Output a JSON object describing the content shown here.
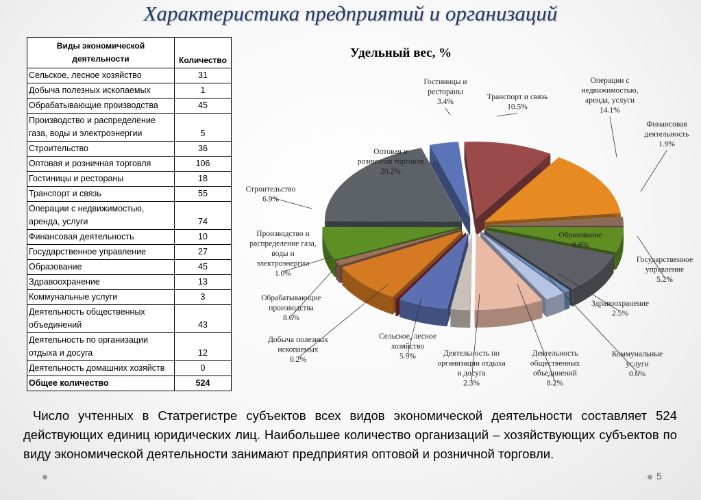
{
  "slide": {
    "title": "Характеристика предприятий и организаций",
    "page_number": "5",
    "footer_text": "Число учтенных в Статрегистре субъектов всех видов экономической деятельности составляет 524 действующих единиц юридических лиц. Наибольшее количество  организаций – хозяйствующих субъектов по виду экономической деятельности занимают предприятия оптовой и розничной торговли."
  },
  "table": {
    "header_activity": "Виды экономической деятельности",
    "header_count": "Количество",
    "rows": [
      {
        "activity": "Сельское, лесное хозяйство",
        "count": "31"
      },
      {
        "activity": "Добыча полезных ископаемых",
        "count": "1"
      },
      {
        "activity": "Обрабатывающие производства",
        "count": "45"
      },
      {
        "activity": "Производство и распределение газа, воды и электроэнергии",
        "count": "5"
      },
      {
        "activity": "Строительство",
        "count": "36"
      },
      {
        "activity": "Оптовая и розничная торговля",
        "count": "106"
      },
      {
        "activity": "Гостиницы и рестораны",
        "count": "18"
      },
      {
        "activity": "Транспорт и связь",
        "count": "55"
      },
      {
        "activity": "Операции с недвижимостью, аренда, услуги",
        "count": "74"
      },
      {
        "activity": "Финансовая деятельность",
        "count": "10"
      },
      {
        "activity": "Государственное управление",
        "count": "27"
      },
      {
        "activity": "Образование",
        "count": "45"
      },
      {
        "activity": "Здравоохранение",
        "count": "13"
      },
      {
        "activity": "Коммунальные услуги",
        "count": "3"
      },
      {
        "activity": "Деятельность общественных объединений",
        "count": "43"
      },
      {
        "activity": "Деятельность по организации отдыха и досуга",
        "count": "12"
      },
      {
        "activity": "Деятельность домашних хозяйств",
        "count": "0"
      }
    ],
    "total_label": "Общее количество",
    "total_count": "524"
  },
  "chart_data": {
    "type": "pie",
    "title": "Удельный вес, %",
    "slices": [
      {
        "label": "Гостиницы и рестораны",
        "value": 3.4,
        "value_label": "3.4%",
        "color": "#5b74b8"
      },
      {
        "label": "Транспорт и связь",
        "value": 10.5,
        "value_label": "10.5%",
        "color": "#9b4a4a"
      },
      {
        "label": "Операции с недвижимостью, аренда, услуги",
        "value": 14.1,
        "value_label": "14.1%",
        "color": "#e88a22"
      },
      {
        "label": "Финансовая деятельность",
        "value": 1.9,
        "value_label": "1.9%",
        "color": "#8c6a58"
      },
      {
        "label": "Государственное управление",
        "value": 5.2,
        "value_label": "5.2%",
        "color": "#5f8d22"
      },
      {
        "label": "Образование",
        "value": 8.6,
        "value_label": "8.6%",
        "color": "#5c6066"
      },
      {
        "label": "Коммунальные услуги",
        "value": 0.6,
        "value_label": "0.6%",
        "color": "#6d8fc4"
      },
      {
        "label": "Здравоохранение",
        "value": 2.5,
        "value_label": "2.5%",
        "color": "#b7c3e2"
      },
      {
        "label": "Деятельность общественных объединений",
        "value": 8.2,
        "value_label": "8.2%",
        "color": "#ebbaa6"
      },
      {
        "label": "Деятельность по организации отдыха и досуга",
        "value": 2.3,
        "value_label": "2.3%",
        "color": "#c9c0b8"
      },
      {
        "label": "Сельское, лесное хозяйство",
        "value": 5.9,
        "value_label": "5.9%",
        "color": "#5b6fb2"
      },
      {
        "label": "Добыча полезных ископаемых",
        "value": 0.2,
        "value_label": "0.2%",
        "color": "#8b2a2a"
      },
      {
        "label": "Обрабатывающие производства",
        "value": 8.6,
        "value_label": "8.6%",
        "color": "#d57a22"
      },
      {
        "label": "Производство и распределение газа, воды и электроэнергии",
        "value": 1.0,
        "value_label": "1.0%",
        "color": "#a06d55"
      },
      {
        "label": "Строительство",
        "value": 6.9,
        "value_label": "6.9%",
        "color": "#5c8f24"
      },
      {
        "label": "Оптовая и розничная торговля",
        "value": 20.2,
        "value_label": "20.2%",
        "color": "#5d6268"
      }
    ],
    "callouts": [
      {
        "lines": [
          "Гостиницы и",
          "рестораны",
          "3.4%"
        ]
      },
      {
        "lines": [
          "Транспорт и связь",
          "10.5%"
        ]
      },
      {
        "lines": [
          "Операции с",
          "недвижимостью,",
          "аренда, услуги",
          "14.1%"
        ]
      },
      {
        "lines": [
          "Финансовая",
          "деятельность",
          "1.9%"
        ]
      },
      {
        "lines": [
          "Государственное",
          "управление",
          "5.2%"
        ]
      },
      {
        "lines": [
          "Образование",
          "8.6%"
        ]
      },
      {
        "lines": [
          "Коммунальные",
          "услуги",
          "0.6%"
        ]
      },
      {
        "lines": [
          "Здравоохранение",
          "2.5%"
        ]
      },
      {
        "lines": [
          "Деятельность",
          "общественных",
          "объединений",
          "8.2%"
        ]
      },
      {
        "lines": [
          "Деятельность по",
          "организации отдыха",
          "и досуга",
          "2.3%"
        ]
      },
      {
        "lines": [
          "Сельское, лесное",
          "хозяйство",
          "5.9%"
        ]
      },
      {
        "lines": [
          "Добыча полезных",
          "ископаемых",
          "0.2%"
        ]
      },
      {
        "lines": [
          "Обрабатывающие",
          "производства",
          "8.6%"
        ]
      },
      {
        "lines": [
          "Производство и",
          "распределение газа,",
          "воды и",
          "электроэнергии",
          "1.0%"
        ]
      },
      {
        "lines": [
          "Строительство",
          "6.9%"
        ]
      },
      {
        "lines": [
          "Оптовая и",
          "розничная торговля",
          "20.2%"
        ]
      }
    ]
  }
}
